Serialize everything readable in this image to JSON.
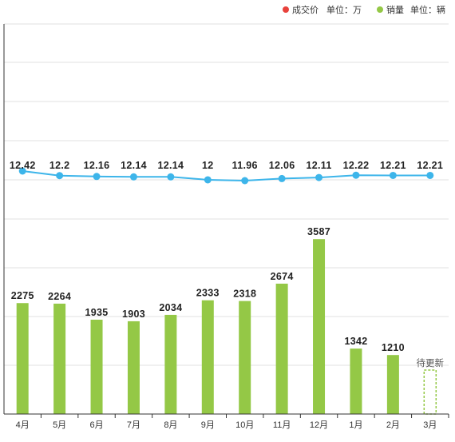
{
  "legend": {
    "price": {
      "label": "成交价",
      "unit": "单位：万",
      "color": "#e8423c"
    },
    "sales": {
      "label": "销量",
      "unit": "单位：辆",
      "color": "#94c846"
    }
  },
  "chart_data": {
    "type": "bar+line",
    "categories": [
      "4月",
      "5月",
      "6月",
      "7月",
      "8月",
      "9月",
      "10月",
      "11月",
      "12月",
      "1月",
      "2月",
      "3月"
    ],
    "series": [
      {
        "name": "销量",
        "type": "bar",
        "color": "#94c846",
        "values": [
          2275,
          2264,
          1935,
          1903,
          2034,
          2333,
          2318,
          2674,
          3587,
          1342,
          1210,
          null
        ],
        "value_labels": [
          "2275",
          "2264",
          "1935",
          "1903",
          "2034",
          "2333",
          "2318",
          "2674",
          "3587",
          "1342",
          "1210",
          "待更新"
        ]
      },
      {
        "name": "成交价",
        "type": "line",
        "color": "#3db5ea",
        "values": [
          12.42,
          12.2,
          12.16,
          12.14,
          12.14,
          12,
          11.96,
          12.06,
          12.11,
          12.22,
          12.21,
          12.21
        ],
        "value_labels": [
          "12.42",
          "12.2",
          "12.16",
          "12.14",
          "12.14",
          "12",
          "11.96",
          "12.06",
          "12.11",
          "12.22",
          "12.21",
          "12.21"
        ]
      }
    ],
    "pending_index": 11,
    "grid": true,
    "legend_position": "top-right"
  }
}
